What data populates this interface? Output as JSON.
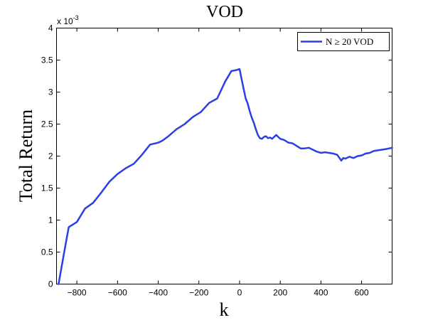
{
  "chart_data": {
    "type": "line",
    "title": "VOD",
    "xlabel": "k",
    "ylabel": "Total Return",
    "y_exponent_prefix": "x 10",
    "y_exponent_power": "-3",
    "xlim": [
      -900,
      750
    ],
    "ylim": [
      0,
      4
    ],
    "xticks": [
      -800,
      -600,
      -400,
      -200,
      0,
      200,
      400,
      600
    ],
    "xtick_labels": [
      "−800",
      "−600",
      "−400",
      "−200",
      "0",
      "200",
      "400",
      "600"
    ],
    "yticks": [
      0,
      0.5,
      1,
      1.5,
      2,
      2.5,
      3,
      3.5,
      4
    ],
    "ytick_labels": [
      "0",
      "0.5",
      "1",
      "1.5",
      "2",
      "2.5",
      "3",
      "3.5",
      "4"
    ],
    "grid": false,
    "legend_position": "top-right",
    "series": [
      {
        "name": "N ≥ 20 VOD",
        "color": "#2c3ee6",
        "x": [
          -890,
          -865,
          -840,
          -800,
          -760,
          -720,
          -680,
          -640,
          -600,
          -560,
          -520,
          -480,
          -440,
          -400,
          -380,
          -350,
          -310,
          -270,
          -230,
          -190,
          -150,
          -110,
          -70,
          -40,
          -20,
          0,
          10,
          20,
          30,
          40,
          50,
          60,
          70,
          80,
          90,
          100,
          110,
          120,
          130,
          140,
          150,
          160,
          170,
          180,
          190,
          200,
          220,
          240,
          260,
          280,
          300,
          320,
          340,
          360,
          380,
          400,
          420,
          440,
          460,
          480,
          500,
          510,
          520,
          540,
          560,
          580,
          600,
          620,
          640,
          660,
          680,
          700,
          720,
          750
        ],
        "y": [
          0.0,
          0.45,
          0.89,
          0.97,
          1.18,
          1.27,
          1.43,
          1.6,
          1.72,
          1.81,
          1.88,
          2.02,
          2.18,
          2.21,
          2.24,
          2.31,
          2.42,
          2.5,
          2.61,
          2.69,
          2.83,
          2.9,
          3.17,
          3.33,
          3.34,
          3.36,
          3.2,
          3.05,
          2.9,
          2.82,
          2.7,
          2.6,
          2.52,
          2.42,
          2.33,
          2.28,
          2.27,
          2.3,
          2.31,
          2.28,
          2.29,
          2.27,
          2.3,
          2.33,
          2.3,
          2.27,
          2.25,
          2.21,
          2.2,
          2.16,
          2.12,
          2.12,
          2.13,
          2.1,
          2.07,
          2.05,
          2.06,
          2.05,
          2.04,
          2.02,
          1.93,
          1.97,
          1.96,
          1.99,
          1.97,
          2.0,
          2.01,
          2.04,
          2.05,
          2.08,
          2.09,
          2.1,
          2.11,
          2.13
        ]
      }
    ]
  }
}
